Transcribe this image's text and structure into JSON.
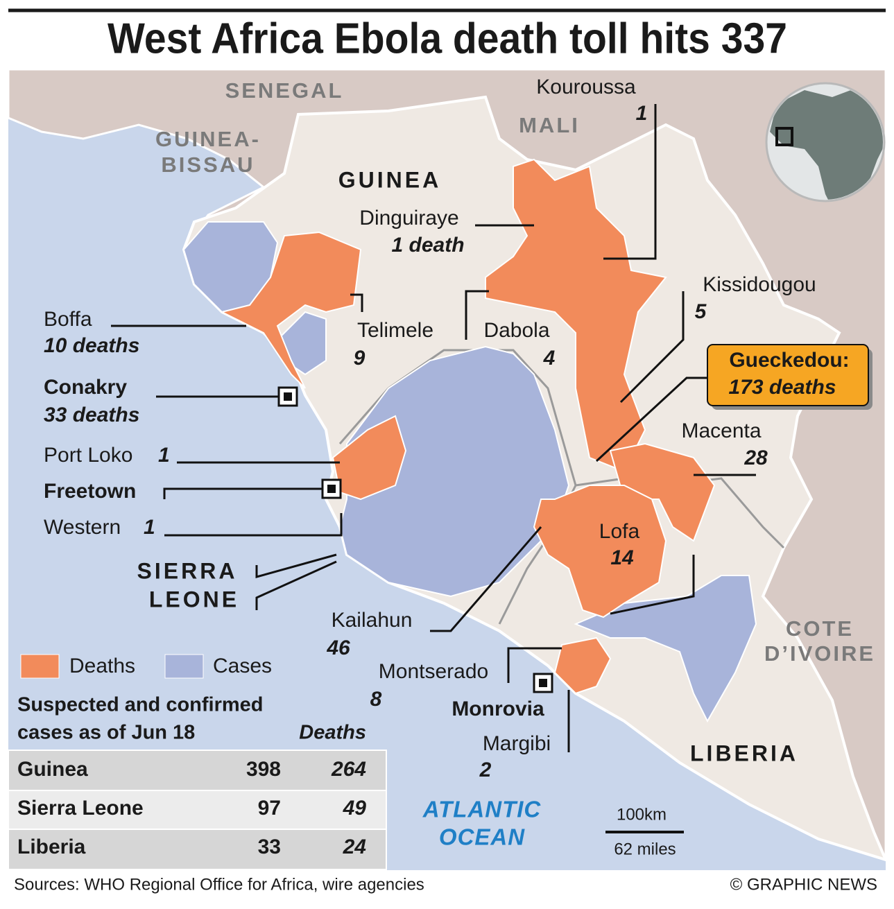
{
  "title": "West Africa Ebola death toll hits 337",
  "countries": {
    "senegal": "SENEGAL",
    "mali": "MALI",
    "guinea_bissau": [
      "GUINEA-",
      "BISSAU"
    ],
    "guinea": "GUINEA",
    "sierra_leone": [
      "SIERRA",
      "LEONE"
    ],
    "cote_divoire": [
      "COTE",
      "D’IVOIRE"
    ],
    "liberia": "LIBERIA"
  },
  "places": {
    "kouroussa": {
      "name": "Kouroussa",
      "deaths": 1
    },
    "dinguiraye": {
      "name": "Dinguiraye",
      "deaths": "1 death"
    },
    "kissidougou": {
      "name": "Kissidougou",
      "deaths": 5
    },
    "telimele": {
      "name": "Telimele",
      "deaths": 9
    },
    "dabola": {
      "name": "Dabola",
      "deaths": 4
    },
    "boffa": {
      "name": "Boffa",
      "deaths": "10 deaths"
    },
    "conakry": {
      "name": "Conakry",
      "deaths": "33 deaths"
    },
    "gueckedou": {
      "name": "Gueckedou:",
      "deaths": "173 deaths"
    },
    "macenta": {
      "name": "Macenta",
      "deaths": 28
    },
    "port_loko": {
      "name": "Port Loko",
      "deaths": 1
    },
    "freetown": {
      "name": "Freetown"
    },
    "western": {
      "name": "Western",
      "deaths": 1
    },
    "lofa": {
      "name": "Lofa",
      "deaths": 14
    },
    "kailahun": {
      "name": "Kailahun",
      "deaths": 46
    },
    "montserado": {
      "name": "Montserado",
      "deaths": 8
    },
    "monrovia": {
      "name": "Monrovia"
    },
    "margibi": {
      "name": "Margibi",
      "deaths": 2
    }
  },
  "ocean": [
    "ATLANTIC",
    "OCEAN"
  ],
  "scale": [
    "100km",
    "62 miles"
  ],
  "legend": [
    "Deaths",
    "Cases"
  ],
  "table": {
    "heading": [
      "Suspected and confirmed",
      "cases as of Jun 18"
    ],
    "deaths_header": "Deaths",
    "rows": [
      [
        "Guinea",
        398,
        264
      ],
      [
        "Sierra Leone",
        97,
        49
      ],
      [
        "Liberia",
        33,
        24
      ]
    ]
  },
  "footer": {
    "source": "Sources: WHO Regional Office for Africa, wire agencies",
    "credit": "© GRAPHIC NEWS"
  }
}
